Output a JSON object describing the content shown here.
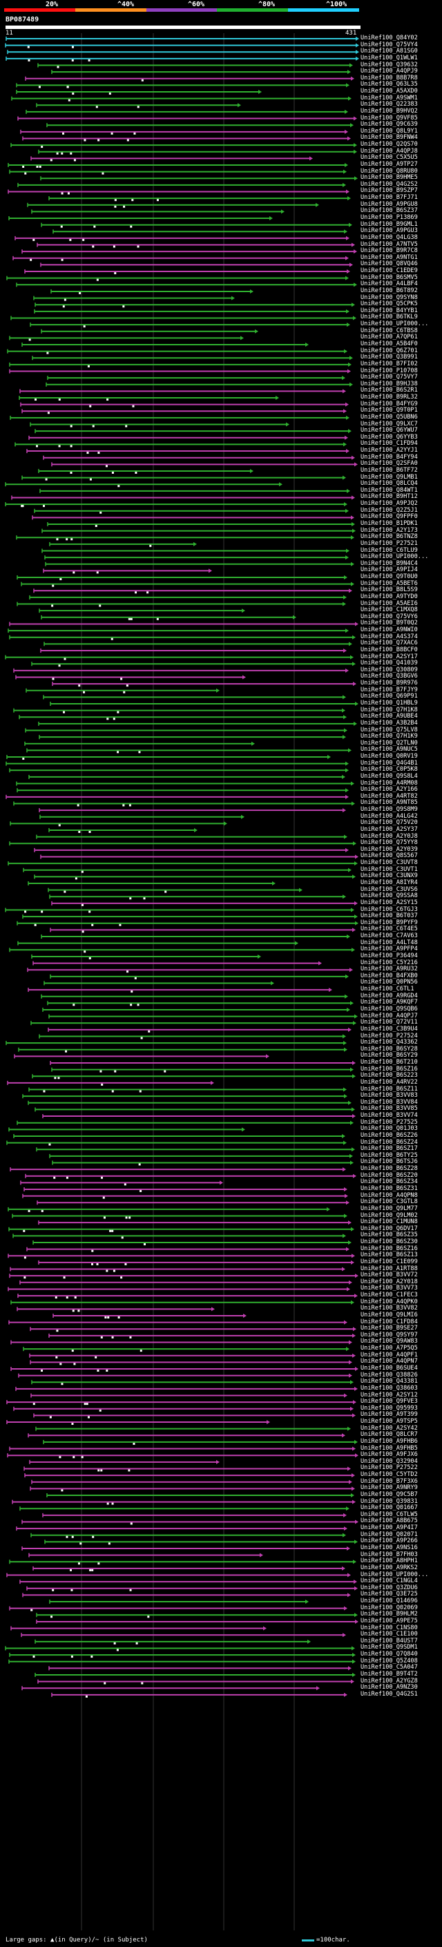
{
  "header": {
    "scale_labels": [
      "20%",
      "^40%",
      "^60%",
      "^80%",
      "^100%"
    ],
    "scale_colors": [
      "#ff1010",
      "#ff9020",
      "#9040c0",
      "#20b030",
      "#20d0ff"
    ],
    "query_id": "BP087489",
    "query_start": "11",
    "query_end": "431"
  },
  "footer": {
    "legend_text": "Large gaps: ▲(in Query)/~ (in Subject)",
    "scale_legend": "=100char."
  },
  "colors": {
    "cyan": "#30c8d8",
    "green": "#30b030",
    "magenta": "#c040b0"
  },
  "hits": [
    "UniRef100_Q84Y02",
    "UniRef100_Q75VY4",
    "UniRef100_A81SG0",
    "UniRef100_Q1WLW1",
    "UniRef100_Q39632",
    "UniRef100_A4QPJ9",
    "UniRef100_B8B7R8",
    "UniRef100_Q63L35",
    "UniRef100_A5AXD0",
    "UniRef100_A9SWM1",
    "UniRef100_Q22383",
    "UniRef100_B9HVQ2",
    "UniRef100_Q9VF85",
    "UniRef100_Q9C639",
    "UniRef100_Q8L9Y1",
    "UniRef100_B9FNW4",
    "UniRef100_Q2QS70",
    "UniRef100_A4QPJ8",
    "UniRef100_C5X5U5",
    "UniRef100_A9TP27",
    "UniRef100_Q8RU80",
    "UniRef100_B9HME5",
    "UniRef100_Q4G2S2",
    "UniRef100_B9SZP7",
    "UniRef100_B7FJ71",
    "UniRef100_A9PGU8",
    "UniRef100_B6SZ37",
    "UniRef100_P13869",
    "UniRef100_B9GML1",
    "UniRef100_A9PGU3",
    "UniRef100_Q4LG38",
    "UniRef100_A7NTV5",
    "UniRef100_B9R7C8",
    "UniRef100_A9NTG1",
    "UniRef100_Q8VQ46",
    "UniRef100_C1EDE9",
    "UniRef100_B6SMV5",
    "UniRef100_A4LBF4",
    "UniRef100_B6T892",
    "UniRef100_Q9SYN8",
    "UniRef100_Q5CPK5",
    "UniRef100_B4YYB1",
    "UniRef100_B6TKL9",
    "UniRef100_UPI000...",
    "UniRef100_C6TBS8",
    "UniRef100_A7QP61",
    "UniRef100_A5B4F0",
    "UniRef100_Q6Z701",
    "UniRef100_Q3B991",
    "UniRef100_B7FI02",
    "UniRef100_P10708",
    "UniRef100_Q75VY7",
    "UniRef100_B9HJ38",
    "UniRef100_B6S2R1",
    "UniRef100_B9RL32",
    "UniRef100_B4FYG9",
    "UniRef100_Q9T0P1",
    "UniRef100_Q5UBN6",
    "UniRef100_Q9LXC7",
    "UniRef100_Q6YWU7",
    "UniRef100_Q6YYB3",
    "UniRef100_C1FD94",
    "UniRef100_A2YYJ1",
    "UniRef100_B4FY94",
    "UniRef100_Q2SFA0",
    "UniRef100_B6TF72",
    "UniRef100_Q9LMB1",
    "UniRef100_Q8LCQ4",
    "UniRef100_Q84WT1",
    "UniRef100_B9HT12",
    "UniRef100_A9PJQ2",
    "UniRef100_Q2Z5J1",
    "UniRef100_Q9FPF0",
    "UniRef100_B1PDK1",
    "UniRef100_A2Y173",
    "UniRef100_B6TNZ8",
    "UniRef100_P27521",
    "UniRef100_C6TLU9",
    "UniRef100_UPI000...",
    "UniRef100_B9N4C4",
    "UniRef100_A9PIJ4",
    "UniRef100_Q9T0U0",
    "UniRef100_A5BET6",
    "UniRef100_B8L5S9",
    "UniRef100_A9TYD0",
    "UniRef100_A5AEI6",
    "UniRef100_C1MXQ8",
    "UniRef100_Q75VY6",
    "UniRef100_B9T0Q2",
    "UniRef100_A9NWI0",
    "UniRef100_A4S374",
    "UniRef100_Q7XAC6",
    "UniRef100_B8BCF0",
    "UniRef100_A2SY17",
    "UniRef100_Q41039",
    "UniRef100_Q30809",
    "UniRef100_Q3BGV6",
    "UniRef100_B9R976",
    "UniRef100_B7FJY9",
    "UniRef100_Q69P91",
    "UniRef100_Q1HBL9",
    "UniRef100_Q7H1K8",
    "UniRef100_A9UBE4",
    "UniRef100_A3B2B4",
    "UniRef100_Q75LV8",
    "UniRef100_Q7H1K9",
    "UniRef100_Q2TLN0",
    "UniRef100_A9NUC5",
    "UniRef100_Q0RV19",
    "UniRef100_Q4G4B1",
    "UniRef100_C0P5K8",
    "UniRef100_Q9S8L4",
    "UniRef100_A4RM08",
    "UniRef100_A2Y166",
    "UniRef100_A4RT82",
    "UniRef100_A9NT85",
    "UniRef100_Q9S8M9",
    "UniRef100_A4LG42",
    "UniRef100_Q75V20",
    "UniRef100_A2SY37",
    "UniRef100_A2Y0J8",
    "UniRef100_Q75YY8",
    "UniRef100_A2Y039",
    "UniRef100_Q8S567",
    "UniRef100_C3UVT8",
    "UniRef100_C3UVT1",
    "UniRef100_C3UNX9",
    "UniRef100_A8IYR4",
    "UniRef100_C3UVS6",
    "UniRef100_Q9SSA8",
    "UniRef100_A2SY15",
    "UniRef100_C6TGJ3",
    "UniRef100_B6T037",
    "UniRef100_B9PYF9",
    "UniRef100_C6T4E5",
    "UniRef100_C7AV63",
    "UniRef100_A4LT48",
    "UniRef100_A9PFP4",
    "UniRef100_P36494",
    "UniRef100_C5Y216",
    "UniRef100_A9RU32",
    "UniRef100_B4FXB0",
    "UniRef100_Q0PN56",
    "UniRef100_C6TL1",
    "UniRef100_A9RGD4",
    "UniRef100_A9KQF7",
    "UniRef100_Q9SQB6",
    "UniRef100_A4QPJ7",
    "UniRef100_Q72V11",
    "UniRef100_C3B9U4",
    "UniRef100_P27524",
    "UniRef100_Q43362",
    "UniRef100_B6SY28",
    "UniRef100_B6SY29",
    "UniRef100_B6T210",
    "UniRef100_B6SZ16",
    "UniRef100_B6S223",
    "UniRef100_A4RV22",
    "UniRef100_B6SZ11",
    "UniRef100_B3VV83",
    "UniRef100_B3VV84",
    "UniRef100_B3VV85",
    "UniRef100_B3VV74",
    "UniRef100_P27525",
    "UniRef100_Q01J03",
    "UniRef100_B6SZ26",
    "UniRef100_B6SZ24",
    "UniRef100_B6SZ17",
    "UniRef100_B6TY25",
    "UniRef100_B6TSJ6",
    "UniRef100_B6SZ28",
    "UniRef100_B6SZ20",
    "UniRef100_B6SZ34",
    "UniRef100_B6SZ31",
    "UniRef100_A4QPN8",
    "UniRef100_C3GTL8",
    "UniRef100_Q9LM77",
    "UniRef100_Q9LM02",
    "UniRef100_C1MUN8",
    "UniRef100_Q6DV17",
    "UniRef100_B6SZ35",
    "UniRef100_B6SZ30",
    "UniRef100_B6SZ16",
    "UniRef100_B6SZ13",
    "UniRef100_C1E099",
    "UniRef100_A1RT88",
    "UniRef100_B3VV72",
    "UniRef100_A2Y018",
    "UniRef100_B3VV73",
    "UniRef100_C1FEC3",
    "UniRef100_A4QPK0",
    "UniRef100_B3VV82",
    "UniRef100_Q9LMI6",
    "UniRef100_C1FD84",
    "UniRef100_B9SE27",
    "UniRef100_Q9SY97",
    "UniRef100_Q9AW83",
    "UniRef100_A7P5Q5",
    "UniRef100_A4QPF1",
    "UniRef100_A4QPN7",
    "UniRef100_B6SUE4",
    "UniRef100_Q38826",
    "UniRef100_Q43381",
    "UniRef100_Q38603",
    "UniRef100_A2SY12",
    "UniRef100_Q9FVE3",
    "UniRef100_Q95993",
    "UniRef100_A9T399",
    "UniRef100_A9TSP5",
    "UniRef100_A2SY42",
    "UniRef100_Q8LCR7",
    "UniRef100_A9FHB6",
    "UniRef100_A9FHB5",
    "UniRef100_A9FJX6",
    "UniRef100_Q32904",
    "UniRef100_P27522",
    "UniRef100_C5YTD2",
    "UniRef100_B7F3X6",
    "UniRef100_A9NRY9",
    "UniRef100_Q9C5B7",
    "UniRef100_Q39831",
    "UniRef100_Q01667",
    "UniRef100_C6TLW5",
    "UniRef100_A8B675",
    "UniRef100_A9P4I7",
    "UniRef100_Q02071",
    "UniRef100_A9P266",
    "UniRef100_A9NS16",
    "UniRef100_B7FH03",
    "UniRef100_A8HPH1",
    "UniRef100_A9RKS2",
    "UniRef100_UPI000...",
    "UniRef100_C1NGL4",
    "UniRef100_Q3ZDU6",
    "UniRef100_Q3E725",
    "UniRef100_Q14696",
    "UniRef100_Q02069",
    "UniRef100_B9HLM2",
    "UniRef100_A9PE75",
    "UniRef100_C1NS80",
    "UniRef100_C1E100",
    "UniRef100_B4UST7",
    "UniRef100_Q9SDM1",
    "UniRef100_Q7Q840",
    "UniRef100_Q5Z408",
    "UniRef100_C5A047",
    "UniRef100_B9T4T2",
    "UniRef100_A2YGZ8",
    "UniRef100_A9NZ30",
    "UniRef100_Q4G2S1"
  ]
}
